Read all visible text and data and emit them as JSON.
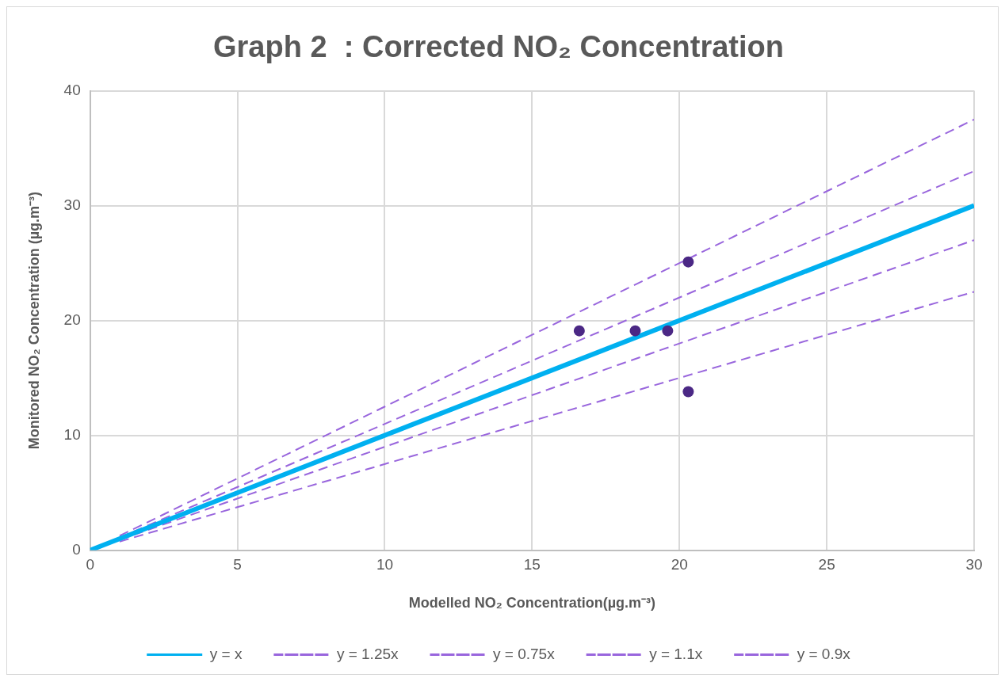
{
  "chart_data": {
    "type": "scatter",
    "title": "Graph 2  : Corrected NO₂ Concentration",
    "xlabel": "Modelled NO₂ Concentration(µg.m⁻³)",
    "ylabel": "Monitored NO₂ Concentration (µg.m⁻³)",
    "xlim": [
      0,
      30
    ],
    "ylim": [
      0,
      40
    ],
    "xticks": [
      0,
      5,
      10,
      15,
      20,
      25,
      30
    ],
    "yticks": [
      0,
      10,
      20,
      30,
      40
    ],
    "grid": true,
    "legend": "bottom",
    "series": [
      {
        "color": "#4b2885",
        "marker": "circle",
        "x": [
          16.6,
          18.5,
          19.6,
          20.3,
          20.3
        ],
        "values": [
          19.1,
          19.1,
          19.1,
          25.1,
          13.8
        ]
      },
      {
        "type": "line",
        "name": "y = x",
        "color": "#00b0f0",
        "line_style": "solid",
        "marker": "none",
        "x": [
          0,
          30
        ],
        "values": [
          0,
          30
        ]
      },
      {
        "type": "line",
        "name": "y = 1.25x",
        "color": "#9966dd",
        "line_style": "dashed",
        "marker": "none",
        "x": [
          1,
          30
        ],
        "values": [
          1.25,
          37.5
        ]
      },
      {
        "type": "line",
        "name": "y = 0.75x",
        "color": "#9966dd",
        "line_style": "dashed",
        "marker": "none",
        "x": [
          1,
          30
        ],
        "values": [
          0.75,
          22.5
        ]
      },
      {
        "type": "line",
        "name": "y = 1.1x",
        "color": "#9966dd",
        "line_style": "dashed",
        "marker": "none",
        "x": [
          1,
          30
        ],
        "values": [
          1.1,
          33
        ]
      },
      {
        "type": "line",
        "name": "y = 0.9x",
        "color": "#9966dd",
        "line_style": "dashed",
        "marker": "none",
        "x": [
          1,
          30
        ],
        "values": [
          0.9,
          27
        ]
      }
    ]
  }
}
